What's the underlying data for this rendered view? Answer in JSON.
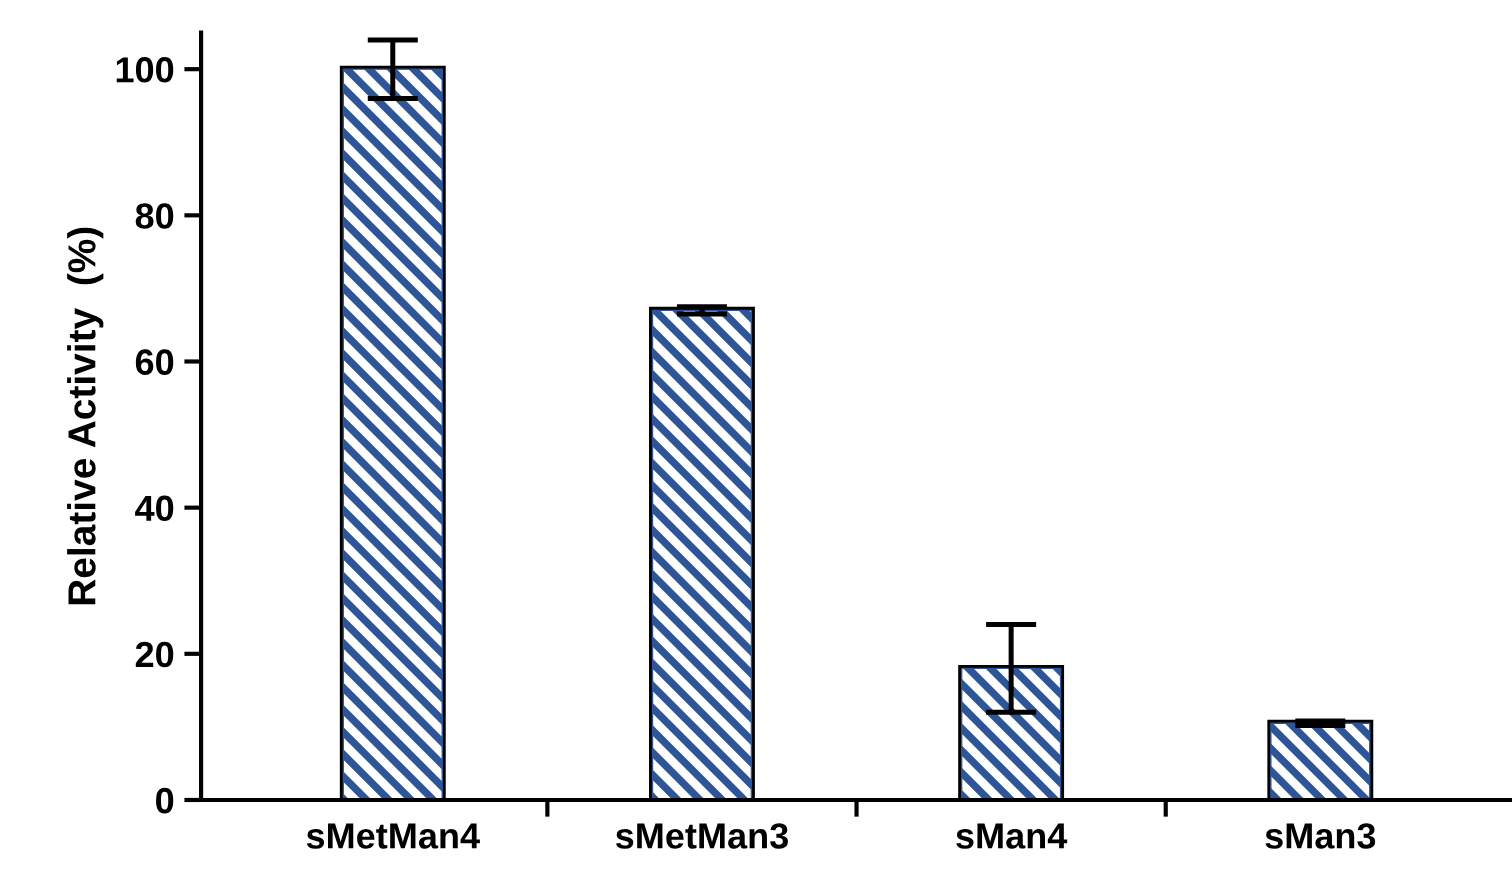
{
  "chart_data": {
    "type": "bar",
    "ylabel": "Relative Activity  (%)",
    "categories": [
      "sMetMan4",
      "sMetMan3",
      "sMan4",
      "sMan3"
    ],
    "values": [
      100,
      67,
      18,
      10.5
    ],
    "errors": [
      4,
      0.5,
      6,
      0.3
    ],
    "color": "#2e5597",
    "ylim": [
      0,
      105
    ],
    "yticks": [
      0,
      20,
      40,
      60,
      80,
      100
    ],
    "grid": false,
    "legend": false
  }
}
